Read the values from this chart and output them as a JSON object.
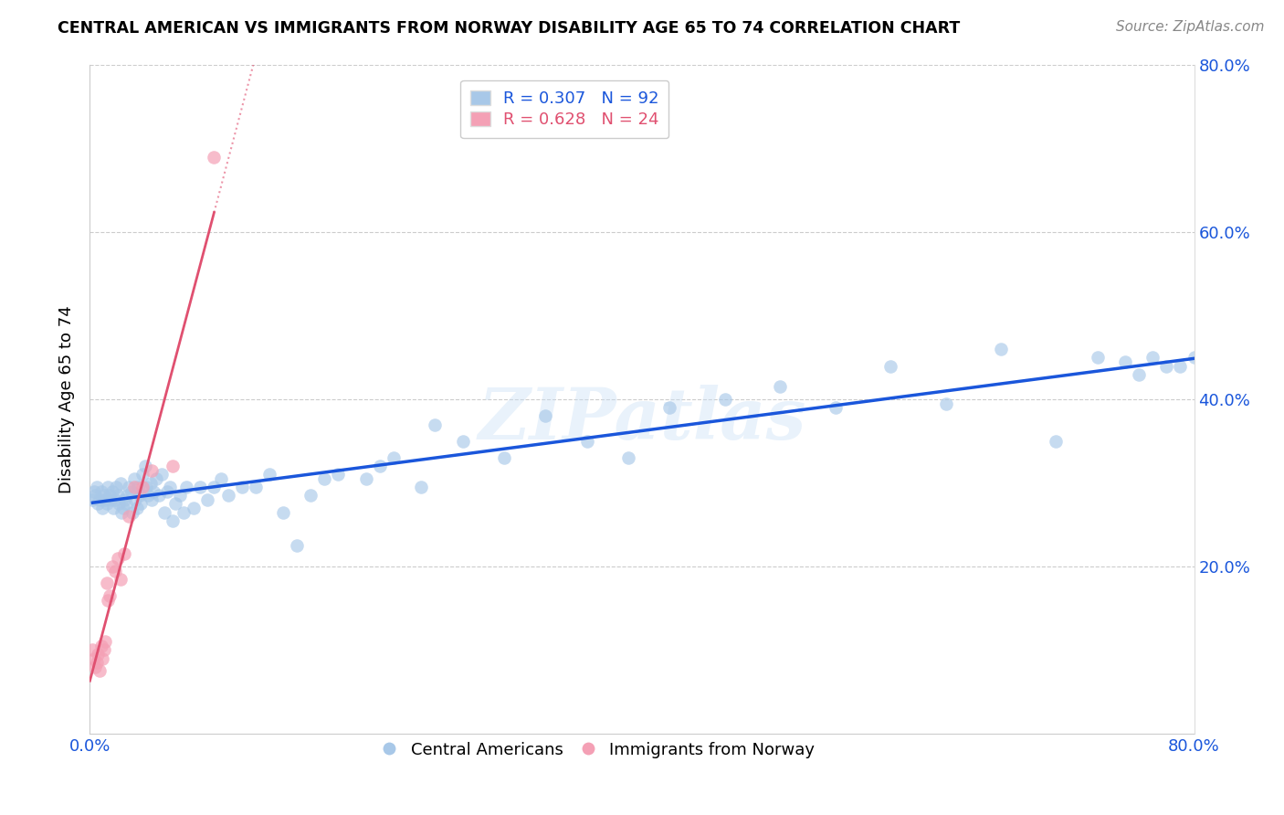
{
  "title": "CENTRAL AMERICAN VS IMMIGRANTS FROM NORWAY DISABILITY AGE 65 TO 74 CORRELATION CHART",
  "source": "Source: ZipAtlas.com",
  "ylabel": "Disability Age 65 to 74",
  "xlim": [
    0.0,
    0.8
  ],
  "ylim": [
    0.0,
    0.8
  ],
  "blue_R": 0.307,
  "blue_N": 92,
  "pink_R": 0.628,
  "pink_N": 24,
  "blue_color": "#a8c8e8",
  "pink_color": "#f4a0b5",
  "blue_line_color": "#1a56db",
  "pink_line_color": "#e05070",
  "legend_bottom_blue": "Central Americans",
  "legend_bottom_pink": "Immigrants from Norway",
  "watermark": "ZIPatlas",
  "blue_x": [
    0.002,
    0.003,
    0.004,
    0.005,
    0.006,
    0.007,
    0.008,
    0.009,
    0.01,
    0.011,
    0.012,
    0.013,
    0.014,
    0.015,
    0.016,
    0.017,
    0.018,
    0.019,
    0.02,
    0.021,
    0.022,
    0.023,
    0.024,
    0.025,
    0.026,
    0.027,
    0.028,
    0.03,
    0.031,
    0.032,
    0.033,
    0.034,
    0.035,
    0.036,
    0.037,
    0.038,
    0.04,
    0.041,
    0.042,
    0.044,
    0.045,
    0.046,
    0.048,
    0.05,
    0.052,
    0.054,
    0.056,
    0.058,
    0.06,
    0.062,
    0.065,
    0.068,
    0.07,
    0.075,
    0.08,
    0.085,
    0.09,
    0.095,
    0.1,
    0.11,
    0.12,
    0.13,
    0.14,
    0.15,
    0.16,
    0.17,
    0.18,
    0.2,
    0.21,
    0.22,
    0.24,
    0.25,
    0.27,
    0.3,
    0.33,
    0.36,
    0.39,
    0.42,
    0.46,
    0.5,
    0.54,
    0.58,
    0.62,
    0.66,
    0.7,
    0.73,
    0.75,
    0.76,
    0.77,
    0.78,
    0.79,
    0.8
  ],
  "blue_y": [
    0.28,
    0.29,
    0.285,
    0.295,
    0.275,
    0.28,
    0.29,
    0.27,
    0.285,
    0.28,
    0.275,
    0.295,
    0.285,
    0.28,
    0.29,
    0.27,
    0.28,
    0.295,
    0.285,
    0.275,
    0.3,
    0.265,
    0.27,
    0.28,
    0.275,
    0.285,
    0.295,
    0.29,
    0.265,
    0.305,
    0.28,
    0.27,
    0.295,
    0.285,
    0.275,
    0.31,
    0.32,
    0.295,
    0.285,
    0.3,
    0.28,
    0.29,
    0.305,
    0.285,
    0.31,
    0.265,
    0.29,
    0.295,
    0.255,
    0.275,
    0.285,
    0.265,
    0.295,
    0.27,
    0.295,
    0.28,
    0.295,
    0.305,
    0.285,
    0.295,
    0.295,
    0.31,
    0.265,
    0.225,
    0.285,
    0.305,
    0.31,
    0.305,
    0.32,
    0.33,
    0.295,
    0.37,
    0.35,
    0.33,
    0.38,
    0.35,
    0.33,
    0.39,
    0.4,
    0.415,
    0.39,
    0.44,
    0.395,
    0.46,
    0.35,
    0.45,
    0.445,
    0.43,
    0.45,
    0.44,
    0.44,
    0.45
  ],
  "pink_x": [
    0.002,
    0.003,
    0.004,
    0.005,
    0.006,
    0.007,
    0.008,
    0.009,
    0.01,
    0.011,
    0.012,
    0.013,
    0.014,
    0.016,
    0.018,
    0.02,
    0.022,
    0.025,
    0.028,
    0.032,
    0.038,
    0.045,
    0.06,
    0.09
  ],
  "pink_y": [
    0.1,
    0.09,
    0.08,
    0.085,
    0.095,
    0.075,
    0.105,
    0.09,
    0.1,
    0.11,
    0.18,
    0.16,
    0.165,
    0.2,
    0.195,
    0.21,
    0.185,
    0.215,
    0.26,
    0.295,
    0.295,
    0.315,
    0.32,
    0.69
  ]
}
